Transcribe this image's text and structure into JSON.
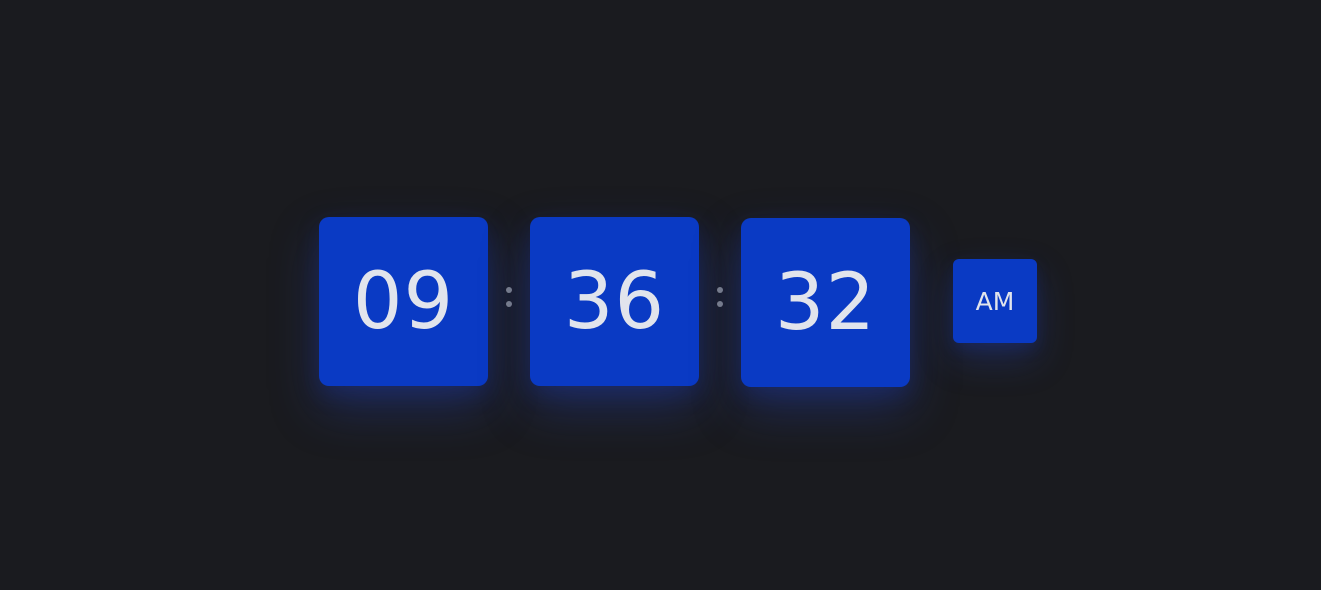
{
  "clock": {
    "hours": "09",
    "minutes": "36",
    "seconds": "32",
    "period": "AM"
  },
  "colors": {
    "background": "#1a1b1f",
    "tile": "#0a3ac4",
    "digit_text": "#e1e4ec",
    "separator": "#7c808b"
  }
}
